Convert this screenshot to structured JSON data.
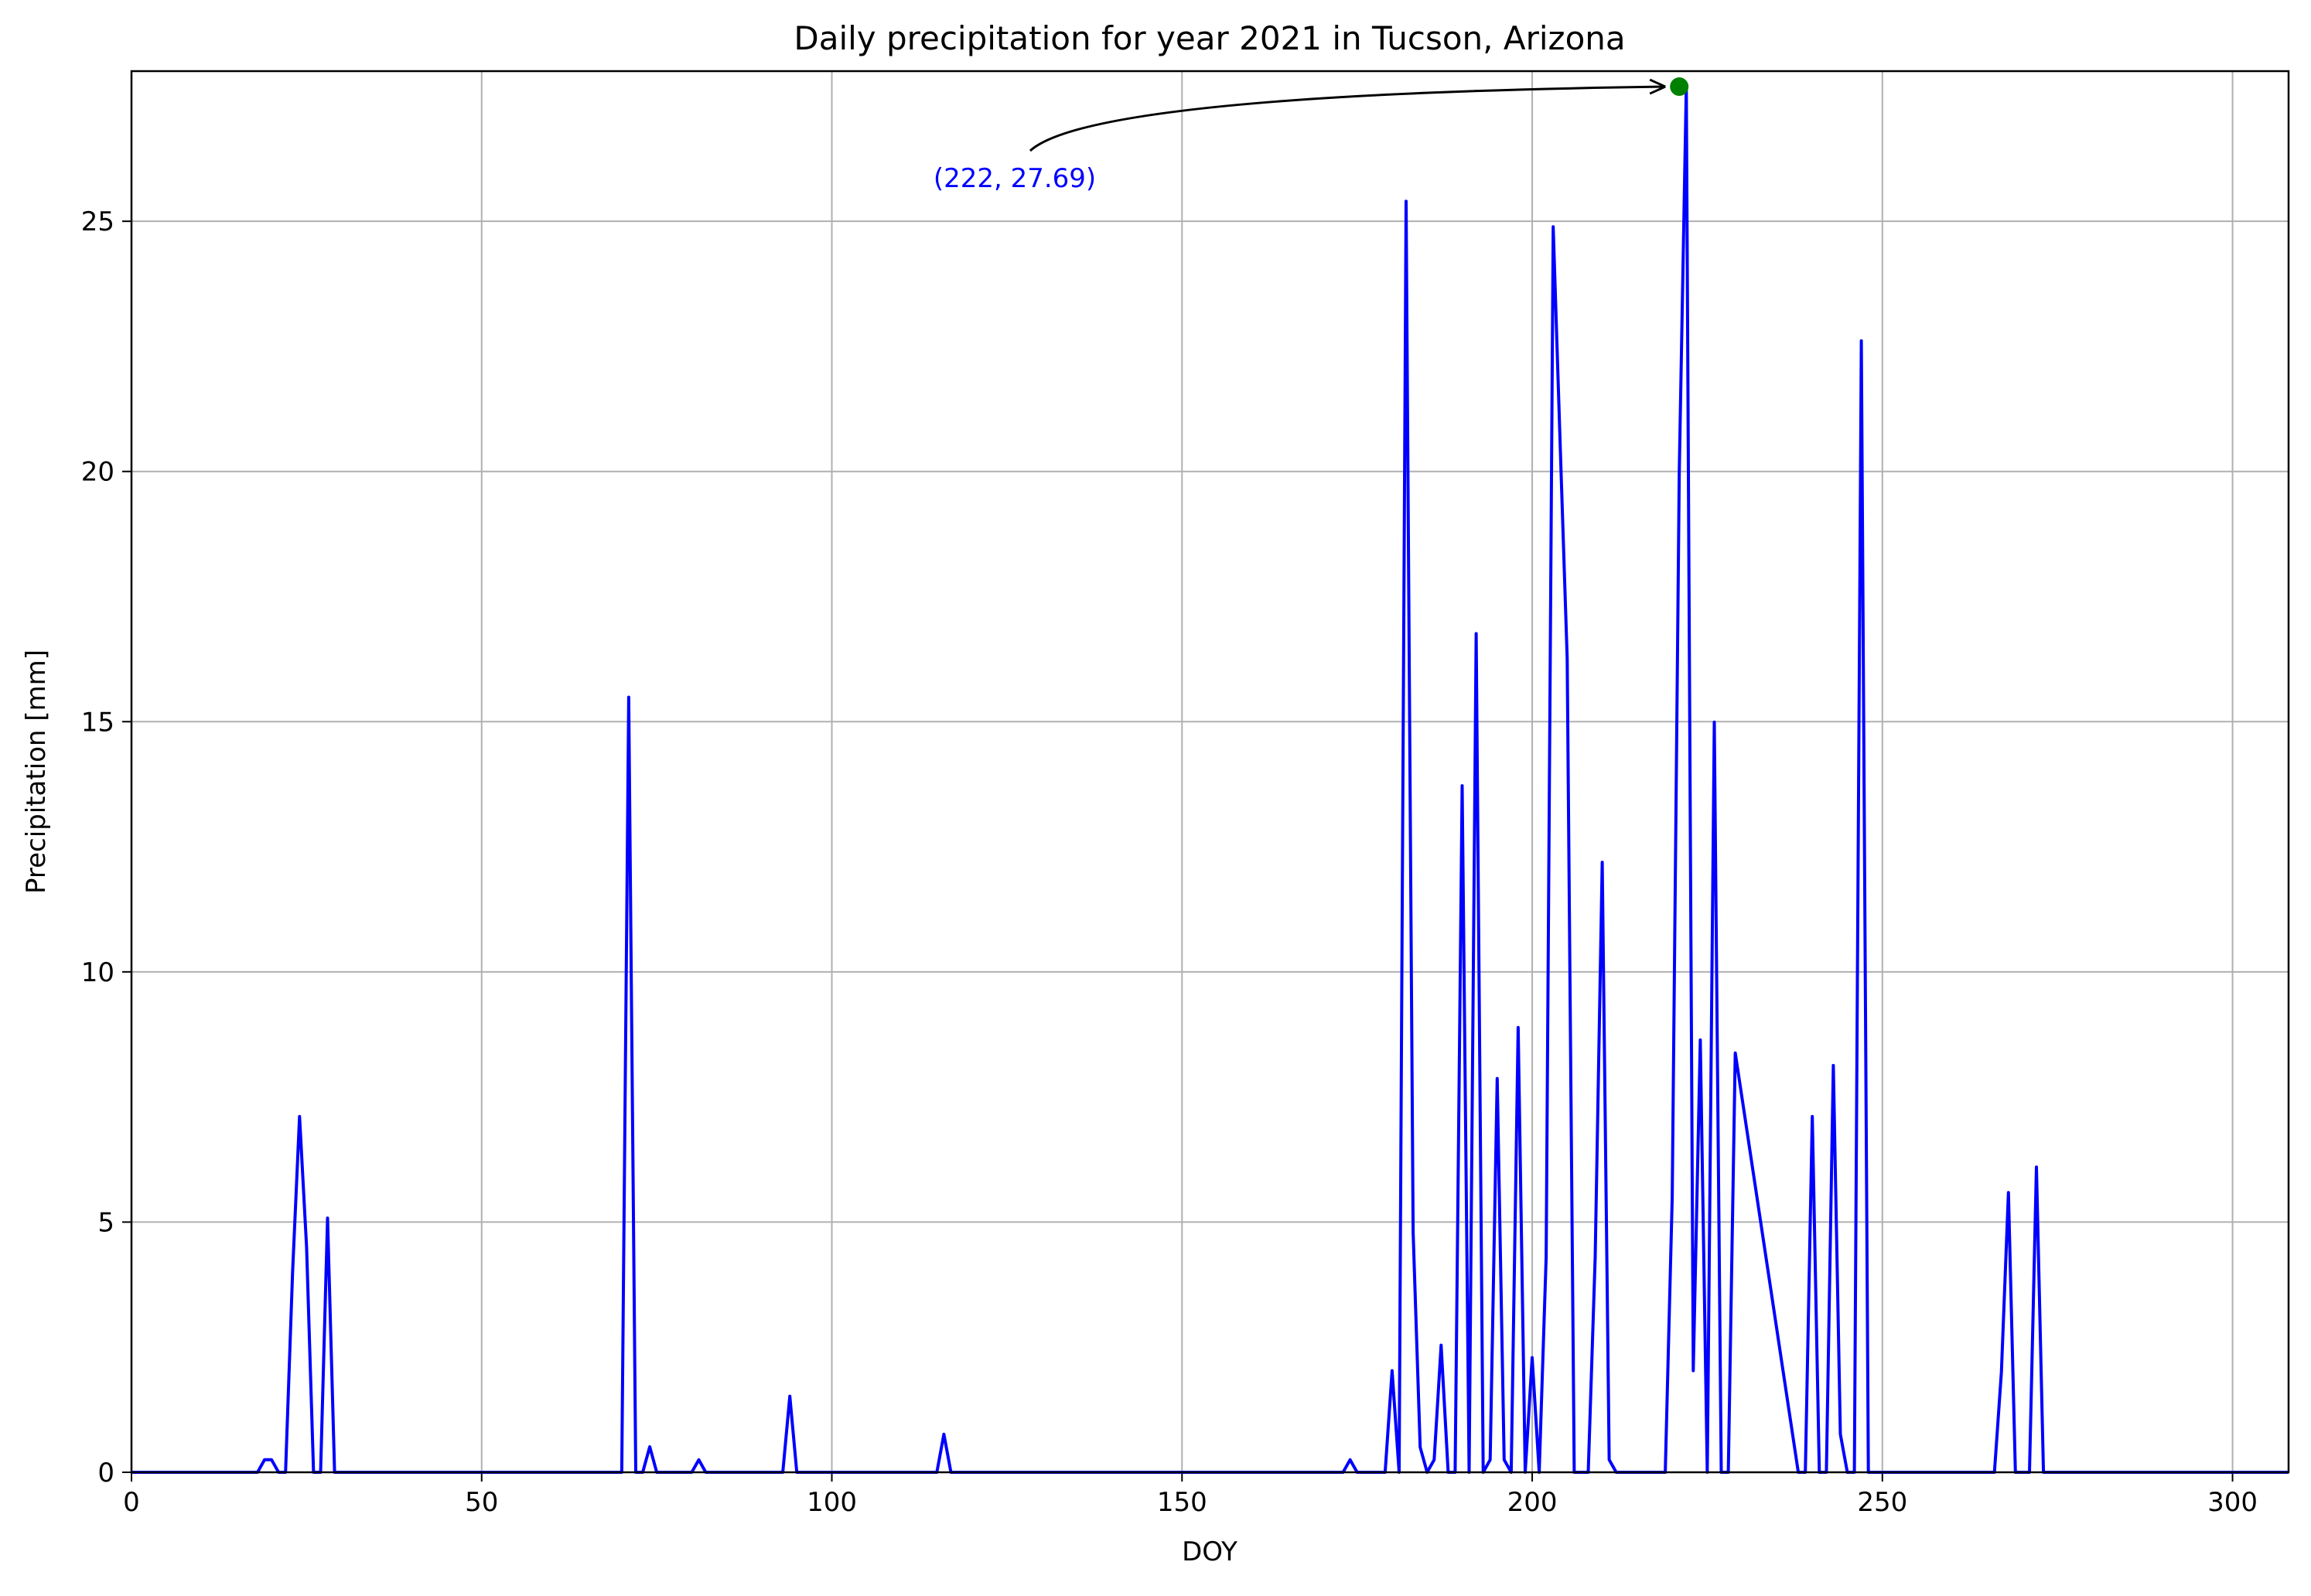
{
  "chart_data": {
    "type": "line",
    "title": "Daily precipitation for year 2021 in Tucson, Arizona",
    "xlabel": "DOY",
    "ylabel": "Precipitation [mm]",
    "xlim": [
      0,
      308
    ],
    "ylim": [
      0,
      28
    ],
    "xticks": [
      0,
      50,
      100,
      150,
      200,
      250,
      300
    ],
    "yticks": [
      0,
      5,
      10,
      15,
      20,
      25
    ],
    "grid": true,
    "colors": {
      "line": "#0000ff",
      "marker": "#008000",
      "annotation_text": "#0000ff",
      "grid": "#b0b0b0",
      "axes": "#000000"
    },
    "series": [
      {
        "x": [
          0,
          18,
          19,
          20,
          21,
          22,
          23,
          24,
          25,
          26,
          27,
          28,
          29,
          70,
          71,
          72,
          73,
          74,
          75,
          80,
          81,
          82,
          93,
          94,
          95,
          115,
          116,
          117,
          173,
          174,
          175,
          178,
          179,
          180,
          181,
          182,
          183,
          184,
          185,
          186,
          187,
          188,
          189,
          190,
          191,
          192,
          193,
          194,
          195,
          196,
          197,
          198,
          199,
          200,
          201,
          202,
          203,
          204,
          205,
          206,
          207,
          208,
          209,
          210,
          211,
          212,
          219,
          220,
          221,
          222,
          223,
          224,
          225,
          226,
          227,
          228,
          229,
          238,
          239,
          240,
          241,
          242,
          243,
          244,
          245,
          246,
          247,
          248,
          266,
          267,
          268,
          269,
          270,
          271,
          272,
          273,
          308
        ],
        "values": [
          0,
          0,
          0.25,
          0.25,
          0,
          0,
          4.0,
          7.11,
          4.5,
          0,
          0,
          5.08,
          0,
          0,
          15.49,
          0,
          0,
          0.51,
          0,
          0,
          0.25,
          0,
          0,
          1.52,
          0,
          0,
          0.76,
          0,
          0,
          0.25,
          0,
          0,
          0,
          2.03,
          0,
          25.4,
          4.8,
          0.5,
          0,
          0.25,
          2.54,
          0,
          0,
          13.72,
          0,
          16.76,
          0,
          0.25,
          7.87,
          0.25,
          0,
          8.89,
          0,
          2.29,
          0,
          4.3,
          24.89,
          20.5,
          16.26,
          0,
          0,
          0,
          4.3,
          12.19,
          0.25,
          0,
          0,
          5.5,
          20.0,
          27.69,
          2.03,
          8.64,
          0,
          14.99,
          0,
          0,
          8.38,
          0,
          0,
          7.11,
          0,
          0,
          8.13,
          0.76,
          0,
          0,
          22.61,
          0,
          0,
          2.0,
          5.59,
          0,
          0,
          0,
          6.1,
          0,
          0
        ]
      }
    ],
    "highlight": {
      "x": 222,
      "y": 27.69,
      "label": "(222, 27.69)"
    }
  }
}
